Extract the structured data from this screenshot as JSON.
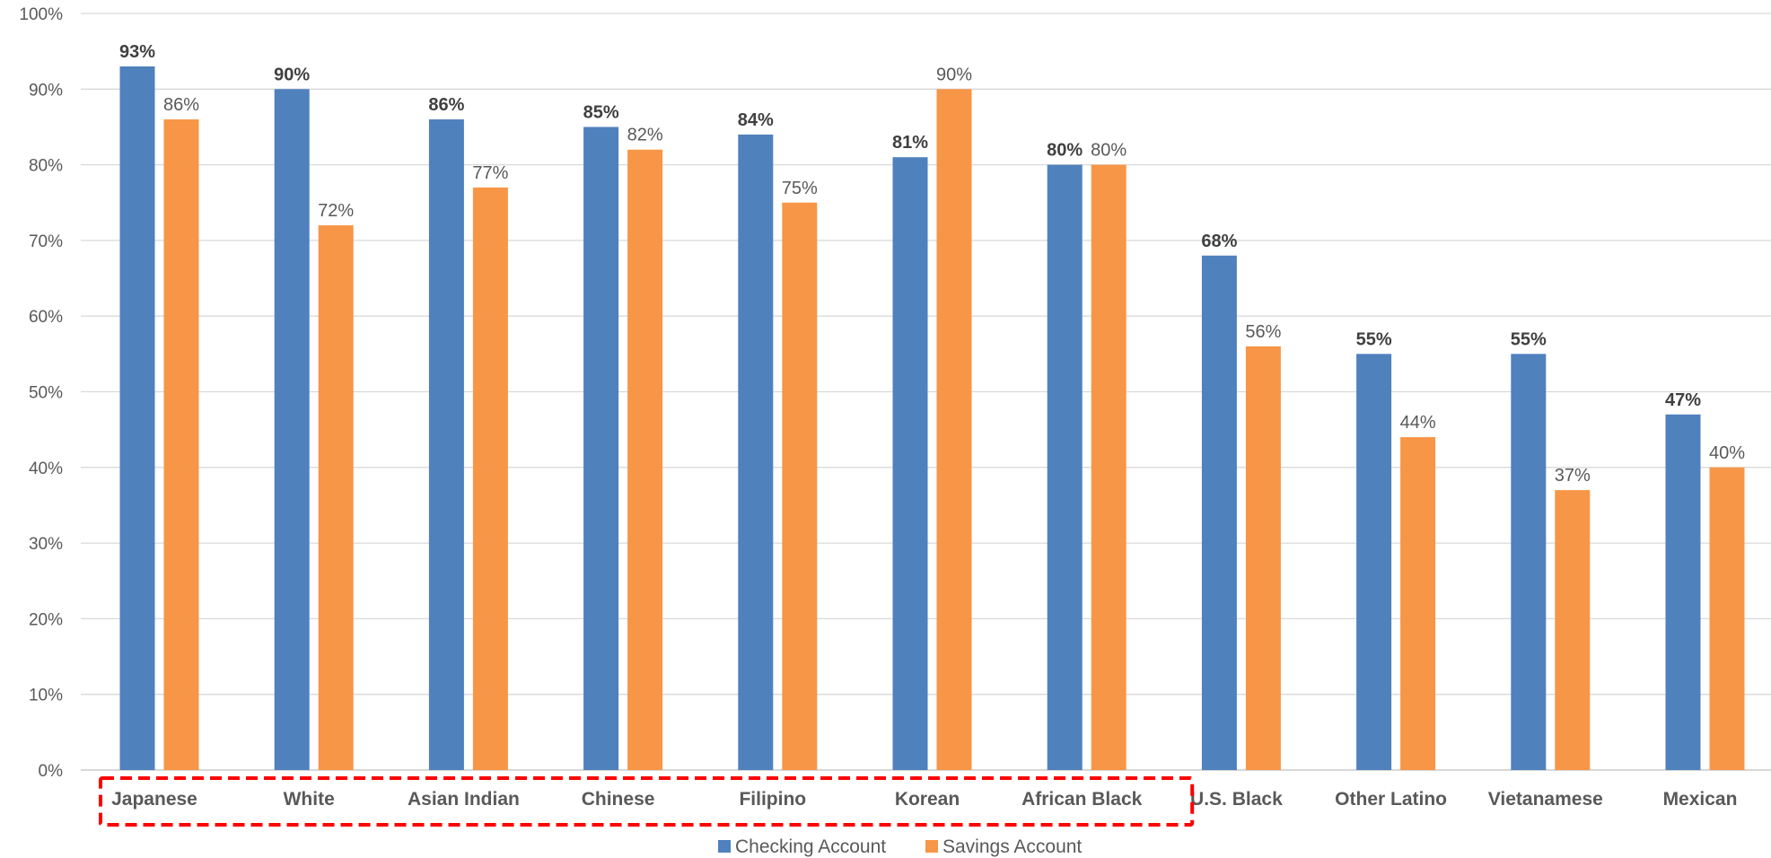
{
  "chart_data": {
    "type": "bar",
    "categories": [
      "Japanese",
      "White",
      "Asian Indian",
      "Chinese",
      "Filipino",
      "Korean",
      "African Black",
      "U.S. Black",
      "Other Latino",
      "Vietanamese",
      "Mexican"
    ],
    "series": [
      {
        "name": "Checking Account",
        "color": "#4f81bd",
        "values": [
          93,
          90,
          86,
          85,
          84,
          81,
          80,
          68,
          55,
          55,
          47
        ]
      },
      {
        "name": "Savings Account",
        "color": "#f79646",
        "values": [
          86,
          72,
          77,
          82,
          75,
          90,
          80,
          56,
          44,
          37,
          40
        ]
      }
    ],
    "value_format": "%",
    "yticks": [
      0,
      10,
      20,
      30,
      40,
      50,
      60,
      70,
      80,
      90,
      100
    ],
    "ytick_labels": [
      "0%",
      "10%",
      "20%",
      "30%",
      "40%",
      "50%",
      "60%",
      "70%",
      "80%",
      "90%",
      "100%"
    ],
    "ylim": [
      0,
      100
    ],
    "grid": true,
    "legend": "bottom",
    "highlight": {
      "style": "dashed",
      "color": "#ff0000",
      "first": 0,
      "last": 6
    }
  }
}
